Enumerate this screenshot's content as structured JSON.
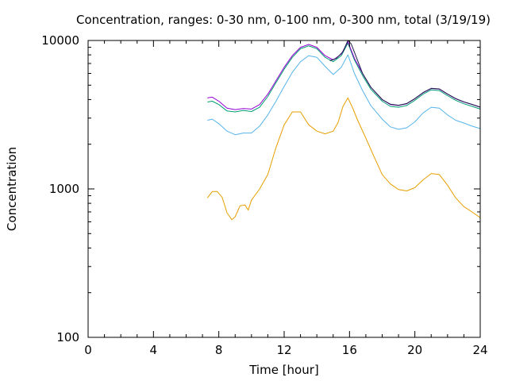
{
  "chart_data": {
    "type": "line",
    "title": "Concentration, ranges: 0-30 nm, 0-100 nm, 0-300 nm, total (3/19/19)",
    "xlabel": "Time [hour]",
    "ylabel": "Concentration",
    "xlim": [
      0,
      24
    ],
    "ylim": [
      100,
      10000
    ],
    "yscale": "log",
    "grid": false,
    "legend": "none",
    "x_ticks": [
      {
        "value": 0,
        "label": "0"
      },
      {
        "value": 4,
        "label": "4"
      },
      {
        "value": 8,
        "label": "8"
      },
      {
        "value": 12,
        "label": "12"
      },
      {
        "value": 16,
        "label": "16"
      },
      {
        "value": 20,
        "label": "20"
      },
      {
        "value": 24,
        "label": "24"
      }
    ],
    "y_ticks": [
      {
        "value": 100,
        "label": "100"
      },
      {
        "value": 1000,
        "label": "1000"
      },
      {
        "value": 10000,
        "label": "10000"
      }
    ],
    "series": [
      {
        "color": "#e69f00",
        "x": [
          7.3,
          7.6,
          7.9,
          8.2,
          8.5,
          8.8,
          9.0,
          9.3,
          9.6,
          9.8,
          10.0,
          10.5,
          11.0,
          11.5,
          12.0,
          12.5,
          13.0,
          13.5,
          14.0,
          14.5,
          15.0,
          15.3,
          15.6,
          15.9,
          16.2,
          16.5,
          17.0,
          17.5,
          18.0,
          18.5,
          19.0,
          19.5,
          20.0,
          20.5,
          21.0,
          21.5,
          22.0,
          22.5,
          23.0,
          23.5,
          24.0
        ],
        "y": [
          870,
          960,
          960,
          880,
          690,
          620,
          650,
          770,
          780,
          720,
          840,
          1000,
          1250,
          1900,
          2700,
          3300,
          3300,
          2700,
          2450,
          2350,
          2450,
          2800,
          3600,
          4100,
          3500,
          2900,
          2200,
          1650,
          1250,
          1080,
          990,
          970,
          1020,
          1150,
          1270,
          1250,
          1060,
          870,
          760,
          700,
          640
        ]
      },
      {
        "color": "#56b4e9",
        "x": [
          7.3,
          7.6,
          8.0,
          8.5,
          9.0,
          9.5,
          10.0,
          10.5,
          11.0,
          11.5,
          12.0,
          12.5,
          13.0,
          13.5,
          14.0,
          14.5,
          15.0,
          15.5,
          15.9,
          16.3,
          16.8,
          17.3,
          18.0,
          18.5,
          19.0,
          19.5,
          20.0,
          20.5,
          21.0,
          21.5,
          22.0,
          22.5,
          23.0,
          23.5,
          24.0
        ],
        "y": [
          2900,
          2950,
          2750,
          2450,
          2320,
          2380,
          2380,
          2650,
          3150,
          3900,
          4900,
          6100,
          7200,
          7900,
          7700,
          6700,
          5900,
          6600,
          8000,
          6000,
          4600,
          3650,
          2950,
          2620,
          2520,
          2580,
          2830,
          3250,
          3550,
          3500,
          3150,
          2900,
          2780,
          2650,
          2550
        ]
      },
      {
        "color": "#009e73",
        "x": [
          7.3,
          7.6,
          8.0,
          8.5,
          9.0,
          9.5,
          10.0,
          10.5,
          11.0,
          11.5,
          12.0,
          12.5,
          13.0,
          13.5,
          14.0,
          14.5,
          15.0,
          15.5,
          15.9,
          16.3,
          16.8,
          17.3,
          18.0,
          18.5,
          19.0,
          19.5,
          20.0,
          20.5,
          21.0,
          21.5,
          22.0,
          22.5,
          23.0,
          23.5,
          24.0
        ],
        "y": [
          3850,
          3900,
          3700,
          3350,
          3300,
          3380,
          3320,
          3550,
          4200,
          5200,
          6400,
          7700,
          8800,
          9200,
          8800,
          7700,
          7200,
          7900,
          9600,
          7400,
          5800,
          4700,
          3900,
          3600,
          3550,
          3650,
          3950,
          4350,
          4650,
          4600,
          4250,
          3950,
          3750,
          3600,
          3450
        ]
      },
      {
        "color": "#9400d3",
        "x": [
          7.3,
          7.6,
          8.0,
          8.5,
          9.0,
          9.5,
          10.0,
          10.5,
          11.0,
          11.5,
          12.0,
          12.5,
          13.0,
          13.5,
          14.0,
          14.5,
          15.0,
          15.5,
          15.9,
          16.3,
          16.8,
          17.3,
          18.0,
          18.5,
          19.0,
          19.5,
          20.0,
          20.5,
          21.0,
          21.5,
          22.0,
          22.5,
          23.0,
          23.5,
          24.0
        ],
        "y": [
          4100,
          4150,
          3900,
          3500,
          3420,
          3480,
          3450,
          3700,
          4350,
          5350,
          6600,
          7900,
          9000,
          9400,
          9000,
          7900,
          7400,
          8100,
          9800,
          7600,
          6000,
          4850,
          4000,
          3700,
          3650,
          3750,
          4050,
          4450,
          4750,
          4700,
          4350,
          4050,
          3850,
          3700,
          3550
        ]
      },
      {
        "color": "#1a1a4a",
        "x": [
          14.8,
          15.2,
          15.6,
          15.9,
          16.1,
          16.4,
          16.8,
          17.3,
          18.0,
          18.5,
          19.0,
          19.5,
          20.0,
          20.5,
          21.0,
          21.5,
          22.0,
          22.5,
          23.0,
          23.5,
          24.0
        ],
        "y": [
          7300,
          7600,
          8400,
          10000,
          9500,
          7800,
          6000,
          4850,
          4000,
          3720,
          3660,
          3760,
          4060,
          4460,
          4760,
          4720,
          4360,
          4060,
          3860,
          3710,
          3560
        ]
      }
    ]
  }
}
